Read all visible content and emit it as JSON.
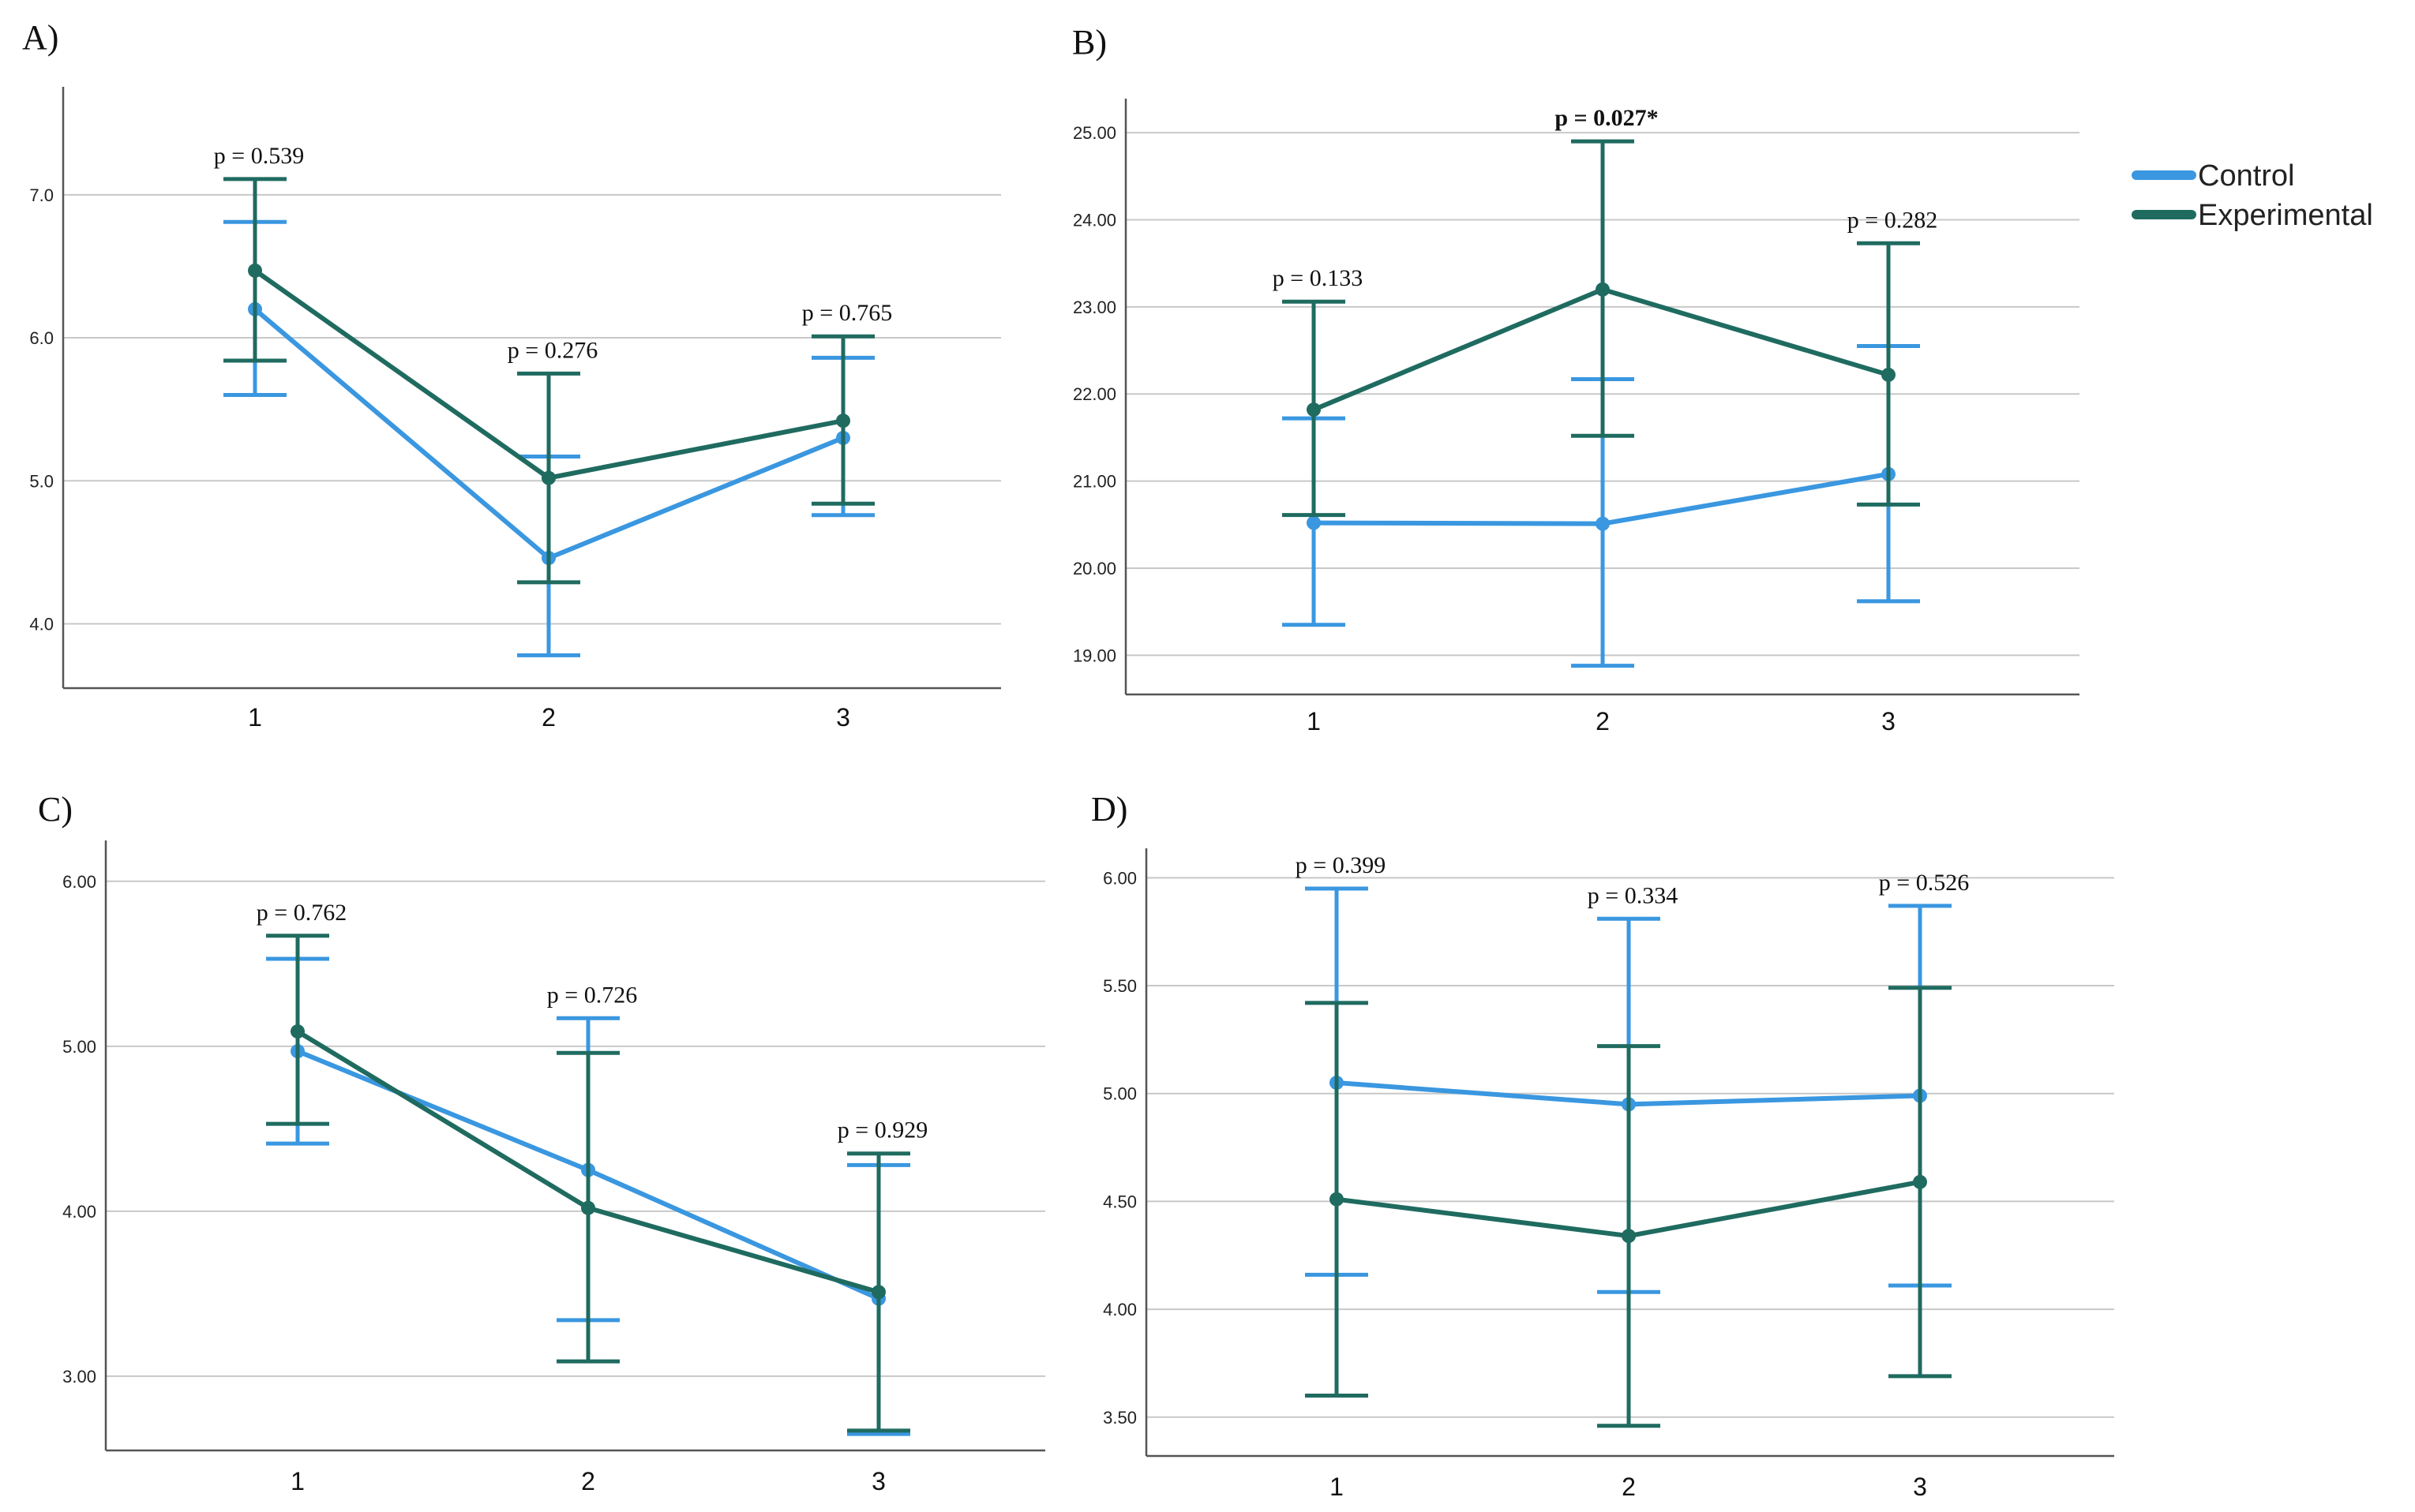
{
  "legend": {
    "placement": "right-top",
    "items": [
      {
        "label": "Control",
        "color": "#3a97e0"
      },
      {
        "label": "Experimental",
        "color": "#1f6b60"
      }
    ]
  },
  "chart_data": [
    {
      "panel": "A)",
      "type": "line",
      "ylim": [
        3.55,
        7.7
      ],
      "yticks": [
        4.0,
        5.0,
        6.0,
        7.0
      ],
      "ytick_labels": [
        "4.0",
        "5.0",
        "6.0",
        "7.0"
      ],
      "categories": [
        "1",
        "2",
        "3"
      ],
      "grid": true,
      "series": [
        {
          "name": "Control",
          "color": "#3a97e0",
          "values": [
            6.2,
            4.46,
            5.3
          ],
          "err_low": [
            5.6,
            3.78,
            4.76
          ],
          "err_high": [
            6.81,
            5.17,
            5.86
          ]
        },
        {
          "name": "Experimental",
          "color": "#1f6b60",
          "values": [
            6.47,
            5.02,
            5.42
          ],
          "err_low": [
            5.84,
            4.29,
            4.84
          ],
          "err_high": [
            7.11,
            5.75,
            6.01
          ]
        }
      ],
      "annotations": [
        {
          "text": "p = 0.539",
          "bold": false
        },
        {
          "text": "p = 0.276",
          "bold": false
        },
        {
          "text": "p = 0.765",
          "bold": false
        }
      ]
    },
    {
      "panel": "B)",
      "type": "line",
      "ylim": [
        18.55,
        25.3
      ],
      "yticks": [
        19,
        20,
        21,
        22,
        23,
        24,
        25
      ],
      "ytick_labels": [
        "19.00",
        "20.00",
        "21.00",
        "22.00",
        "23.00",
        "24.00",
        "25.00"
      ],
      "categories": [
        "1",
        "2",
        "3"
      ],
      "grid": true,
      "series": [
        {
          "name": "Control",
          "color": "#3a97e0",
          "values": [
            20.52,
            20.51,
            21.08
          ],
          "err_low": [
            19.35,
            18.88,
            19.62
          ],
          "err_high": [
            21.72,
            22.17,
            22.55
          ]
        },
        {
          "name": "Experimental",
          "color": "#1f6b60",
          "values": [
            21.82,
            23.2,
            22.22
          ],
          "err_low": [
            20.61,
            21.52,
            20.73
          ],
          "err_high": [
            23.06,
            24.9,
            23.73
          ]
        }
      ],
      "annotations": [
        {
          "text": "p = 0.133",
          "bold": false
        },
        {
          "text": "p = 0.027*",
          "bold": true
        },
        {
          "text": "p = 0.282",
          "bold": false
        }
      ]
    },
    {
      "panel": "C)",
      "type": "line",
      "ylim": [
        2.55,
        6.2
      ],
      "yticks": [
        3.0,
        4.0,
        5.0,
        6.0
      ],
      "ytick_labels": [
        "3.00",
        "4.00",
        "5.00",
        "6.00"
      ],
      "categories": [
        "1",
        "2",
        "3"
      ],
      "grid": true,
      "series": [
        {
          "name": "Control",
          "color": "#3a97e0",
          "values": [
            4.97,
            4.25,
            3.47
          ],
          "err_low": [
            4.41,
            3.34,
            2.65
          ],
          "err_high": [
            5.53,
            5.17,
            4.28
          ]
        },
        {
          "name": "Experimental",
          "color": "#1f6b60",
          "values": [
            5.09,
            4.02,
            3.51
          ],
          "err_low": [
            4.53,
            3.09,
            2.67
          ],
          "err_high": [
            5.67,
            4.96,
            4.35
          ]
        }
      ],
      "annotations": [
        {
          "text": "p = 0.762",
          "bold": false
        },
        {
          "text": "p = 0.726",
          "bold": false
        },
        {
          "text": "p = 0.929",
          "bold": false
        }
      ]
    },
    {
      "panel": "D)",
      "type": "line",
      "ylim": [
        3.32,
        6.1
      ],
      "yticks": [
        3.5,
        4.0,
        4.5,
        5.0,
        5.5,
        6.0
      ],
      "ytick_labels": [
        "3.50",
        "4.00",
        "4.50",
        "5.00",
        "5.50",
        "6.00"
      ],
      "categories": [
        "1",
        "2",
        "3"
      ],
      "grid": true,
      "series": [
        {
          "name": "Control",
          "color": "#3a97e0",
          "values": [
            5.05,
            4.95,
            4.99
          ],
          "err_low": [
            4.16,
            4.08,
            4.11
          ],
          "err_high": [
            5.95,
            5.81,
            5.87
          ]
        },
        {
          "name": "Experimental",
          "color": "#1f6b60",
          "values": [
            4.51,
            4.34,
            4.59
          ],
          "err_low": [
            3.6,
            3.46,
            3.69
          ],
          "err_high": [
            5.42,
            5.22,
            5.49
          ]
        }
      ],
      "annotations": [
        {
          "text": "p = 0.399",
          "bold": false
        },
        {
          "text": "p = 0.334",
          "bold": false
        },
        {
          "text": "p = 0.526",
          "bold": false
        }
      ]
    }
  ]
}
